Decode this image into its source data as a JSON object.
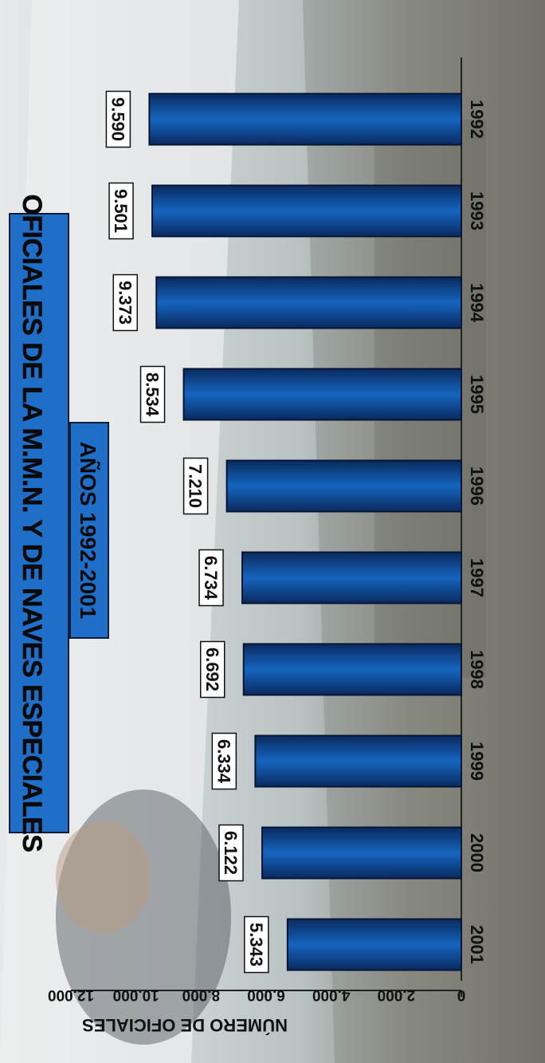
{
  "chart_data": {
    "type": "bar",
    "title": "OFICIALES DE LA M.M.N. Y DE NAVES ESPECIALES",
    "subtitle": "AÑOS 1992-2001",
    "ylabel": "NÚMERO DE OFICIALES",
    "xlabel": "",
    "categories": [
      "1992",
      "1993",
      "1994",
      "1995",
      "1996",
      "1997",
      "1998",
      "1999",
      "2000",
      "2001"
    ],
    "values": [
      5343,
      6122,
      6334,
      6692,
      6734,
      7210,
      8534,
      9373,
      9501,
      9590
    ],
    "data_labels": [
      "5.343",
      "6.122",
      "6.334",
      "6.692",
      "6.734",
      "7.210",
      "8.534",
      "9.373",
      "9.501",
      "9.590"
    ],
    "ylim": [
      0,
      12000
    ],
    "yticks": [
      0,
      2000,
      4000,
      6000,
      8000,
      10000,
      12000
    ],
    "ytick_labels": [
      "0",
      "2.000",
      "4.000",
      "6.000",
      "8.000",
      "10.000",
      "12.000"
    ],
    "orientation": "rotated 90° clockwise",
    "grid": false,
    "colors": {
      "bar": "#1565c0",
      "bar_dark": "#0a2a5e",
      "banner": "#1f6fc8"
    }
  }
}
